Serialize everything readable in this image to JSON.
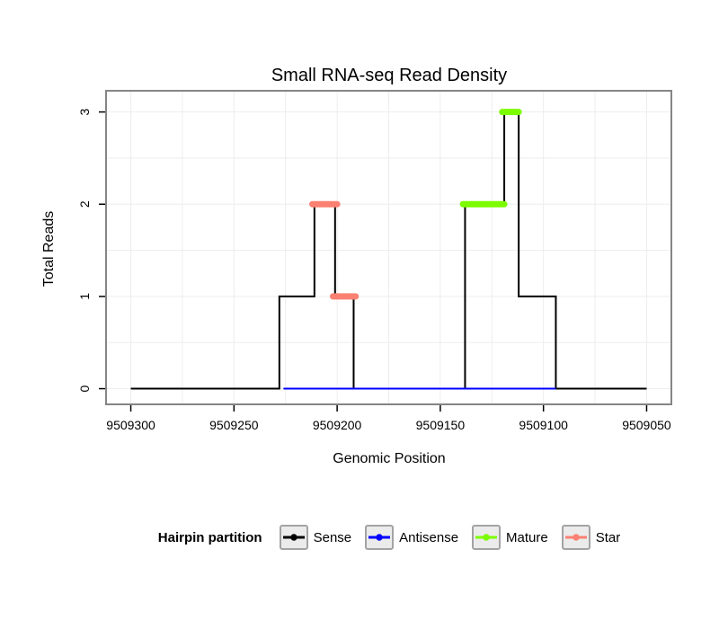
{
  "title": "Small RNA-seq Read Density",
  "x_axis": {
    "label": "Genomic Position",
    "ticks": [
      "9509300",
      "9509250",
      "9509200",
      "9509150",
      "9509100",
      "9509050"
    ]
  },
  "y_axis": {
    "label": "Total Reads",
    "ticks": [
      "0",
      "1",
      "2",
      "3"
    ]
  },
  "legend": {
    "title": "Hairpin partition",
    "items": [
      {
        "label": "Sense",
        "color": "#000000"
      },
      {
        "label": "Antisense",
        "color": "#0000FF"
      },
      {
        "label": "Mature",
        "color": "#7CFC00"
      },
      {
        "label": "Star",
        "color": "#FA8072"
      }
    ]
  },
  "chart_data": {
    "type": "line",
    "subtype": "step-read-density",
    "title": "Small RNA-seq Read Density",
    "xlabel": "Genomic Position",
    "ylabel": "Total Reads",
    "x_ticks": [
      9509300,
      9509250,
      9509200,
      9509150,
      9509100,
      9509050
    ],
    "y_ticks": [
      0,
      1,
      2,
      3
    ],
    "xlim": [
      9509312,
      9509038
    ],
    "x_axis_reversed": true,
    "ylim": [
      -0.17,
      3.23
    ],
    "grid": {
      "x_interval": 25,
      "y_interval": 0.5,
      "color": "#ededed",
      "on": true
    },
    "frame_color": "#858585",
    "legend_position": "bottom",
    "series": [
      {
        "name": "Sense",
        "color": "#000000",
        "line_width": 2,
        "runs": [
          [
            9509300,
            9509228,
            0
          ],
          [
            9509228,
            9509211,
            1
          ],
          [
            9509211,
            9509201,
            2
          ],
          [
            9509201,
            9509192,
            1
          ],
          [
            9509192,
            9509138,
            0
          ],
          [
            9509138,
            9509119,
            2
          ],
          [
            9509119,
            9509112,
            3
          ],
          [
            9509112,
            9509094,
            1
          ],
          [
            9509094,
            9509050,
            0
          ]
        ]
      },
      {
        "name": "Antisense",
        "color": "#0000FF",
        "line_width": 2,
        "runs": [
          [
            9509226,
            9509094,
            0
          ]
        ]
      }
    ],
    "segments": [
      {
        "name": "Star",
        "color": "#FA8072",
        "y": 2,
        "x_start": 9509212,
        "x_end": 9509200
      },
      {
        "name": "Star",
        "color": "#FA8072",
        "y": 1,
        "x_start": 9509202,
        "x_end": 9509191
      },
      {
        "name": "Mature",
        "color": "#7CFC00",
        "y": 2,
        "x_start": 9509139,
        "x_end": 9509119
      },
      {
        "name": "Mature",
        "color": "#7CFC00",
        "y": 3,
        "x_start": 9509120,
        "x_end": 9509112
      }
    ]
  }
}
